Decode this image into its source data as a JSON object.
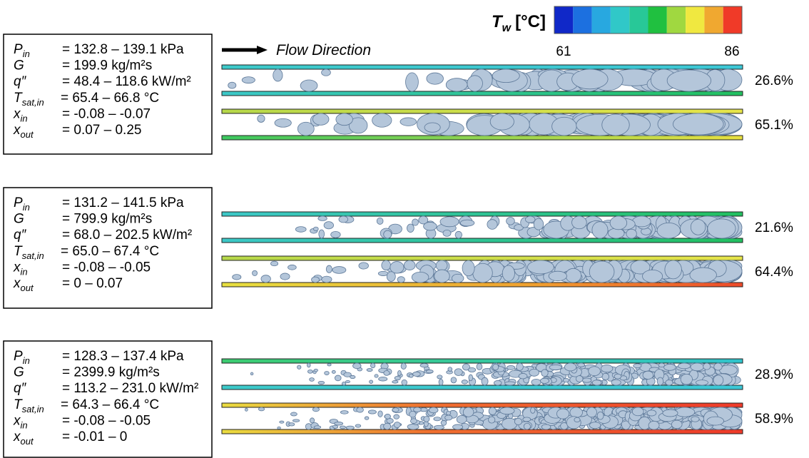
{
  "colorbar": {
    "label": {
      "symbol": "T",
      "sub": "w",
      "unit": "[°C]"
    },
    "min": "61",
    "max": "86"
  },
  "flow_label": "Flow Direction",
  "panels": [
    {
      "params": [
        {
          "symbol": "P",
          "sub": "in",
          "value": "= 132.8 – 139.1 kPa"
        },
        {
          "symbol": "G",
          "value": "= 199.9 kg/m²s"
        },
        {
          "symbol": "q″",
          "value": "= 48.4 –  118.6 kW/m²"
        },
        {
          "symbol": "T",
          "sub": "sat,in",
          "value": "= 65.4 – 66.8 °C"
        },
        {
          "symbol": "x",
          "sub": "in",
          "value": "= -0.08 – -0.07"
        },
        {
          "symbol": "x",
          "sub": "out",
          "value": "= 0.07 – 0.25"
        }
      ],
      "channels": [
        {
          "fraction": "26.6%"
        },
        {
          "fraction": "65.1%"
        }
      ]
    },
    {
      "params": [
        {
          "symbol": "P",
          "sub": "in",
          "value": "= 131.2 – 141.5 kPa"
        },
        {
          "symbol": "G",
          "value": "= 799.9 kg/m²s"
        },
        {
          "symbol": "q″",
          "value": "= 68.0 –  202.5 kW/m²"
        },
        {
          "symbol": "T",
          "sub": "sat,in",
          "value": "= 65.0 – 67.4 °C"
        },
        {
          "symbol": "x",
          "sub": "in",
          "value": "= -0.08 – -0.05"
        },
        {
          "symbol": "x",
          "sub": "out",
          "value": "= 0 – 0.07"
        }
      ],
      "channels": [
        {
          "fraction": "21.6%"
        },
        {
          "fraction": "64.4%"
        }
      ]
    },
    {
      "params": [
        {
          "symbol": "P",
          "sub": "in",
          "value": "= 128.3 – 137.4 kPa"
        },
        {
          "symbol": "G",
          "value": "= 2399.9 kg/m²s"
        },
        {
          "symbol": "q″",
          "value": "= 113.2 –  231.0 kW/m²"
        },
        {
          "symbol": "T",
          "sub": "sat,in",
          "value": "= 64.3 – 66.4 °C"
        },
        {
          "symbol": "x",
          "sub": "in",
          "value": "= -0.08 – -0.05"
        },
        {
          "symbol": "x",
          "sub": "out",
          "value": "= -0.01 – 0"
        }
      ],
      "channels": [
        {
          "fraction": "28.9%"
        },
        {
          "fraction": "58.9%"
        }
      ]
    }
  ]
}
